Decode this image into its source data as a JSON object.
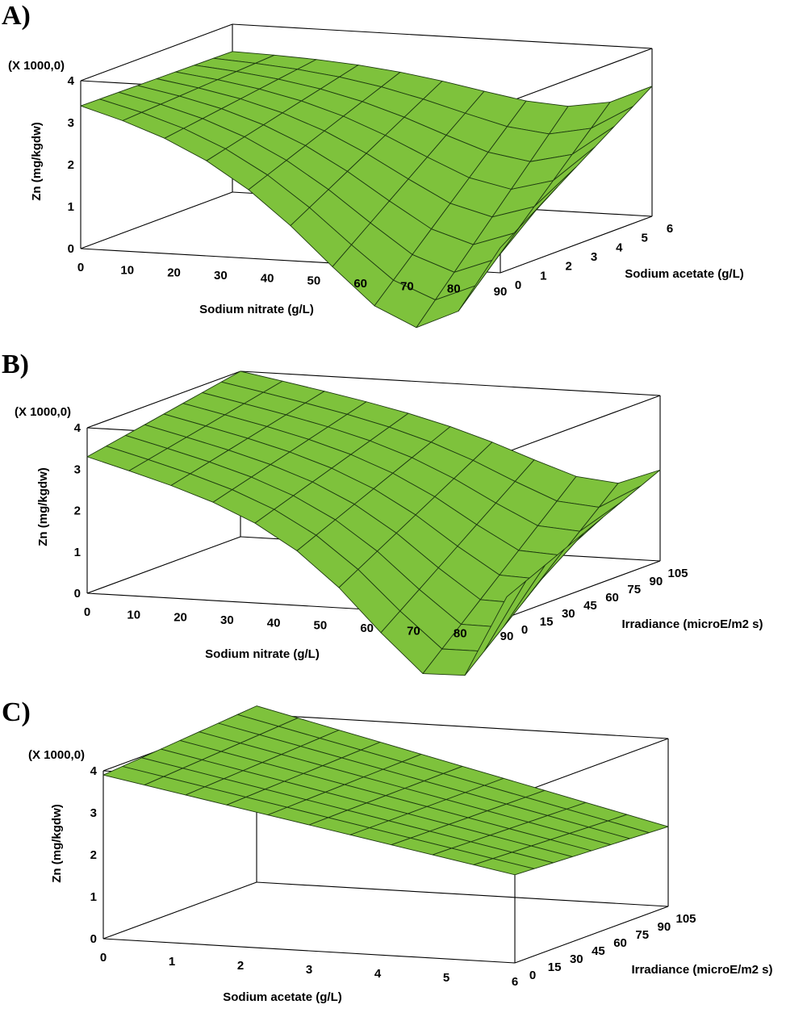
{
  "chart_data": [
    {
      "panel": "A)",
      "type": "surface3d",
      "zlabel": "Zn (mg/kgdw)",
      "z_multiplier": "(X 1000,0)",
      "x": {
        "label": "Sodium nitrate (g/L)",
        "range": [
          0,
          90
        ],
        "ticks": [
          "0",
          "10",
          "20",
          "30",
          "40",
          "50",
          "60",
          "70",
          "80",
          "90"
        ]
      },
      "y": {
        "label": "Sodium acetate (g/L)",
        "range": [
          0,
          6
        ],
        "ticks": [
          "0",
          "1",
          "2",
          "3",
          "4",
          "5",
          "6"
        ]
      },
      "z": {
        "range": [
          0,
          4
        ],
        "ticks": [
          "0",
          "1",
          "2",
          "3",
          "4"
        ]
      },
      "surface": {
        "z_at_corners": {
          "x0_y0": 3.4,
          "x0_ymax": 3.35,
          "xmax_y0": 0.6,
          "xmax_ymax": 3.1
        },
        "min_approx": {
          "x": 70,
          "y": 0,
          "z": 0.0
        }
      },
      "color": "#7ec23c"
    },
    {
      "panel": "B)",
      "type": "surface3d",
      "zlabel": "Zn (mg/kgdw)",
      "z_multiplier": "(X 1000,0)",
      "x": {
        "label": "Sodium nitrate (g/L)",
        "range": [
          0,
          90
        ],
        "ticks": [
          "0",
          "10",
          "20",
          "30",
          "40",
          "50",
          "60",
          "70",
          "80",
          "90"
        ]
      },
      "y": {
        "label": "Irradiance (microE/m2 s)",
        "range": [
          0,
          105
        ],
        "ticks": [
          "0",
          "15",
          "30",
          "45",
          "60",
          "75",
          "90",
          "105"
        ]
      },
      "z": {
        "range": [
          0,
          4
        ],
        "ticks": [
          "0",
          "1",
          "2",
          "3",
          "4"
        ]
      },
      "surface": {
        "z_at_corners": {
          "x0_y0": 3.3,
          "x0_ymax": 4.0,
          "xmax_y0": 0.5,
          "xmax_ymax": 2.2
        },
        "min_approx": {
          "x": 75,
          "y": 0,
          "z": 0.0
        }
      },
      "color": "#7ec23c"
    },
    {
      "panel": "C)",
      "type": "surface3d",
      "zlabel": "Zn (mg/kgdw)",
      "z_multiplier": "(X 1000,0)",
      "x": {
        "label": "Sodium acetate (g/L)",
        "range": [
          0,
          6
        ],
        "ticks": [
          "0",
          "1",
          "2",
          "3",
          "4",
          "5",
          "6"
        ]
      },
      "y": {
        "label": "Irradiance (microE/m2 s)",
        "range": [
          0,
          105
        ],
        "ticks": [
          "0",
          "15",
          "30",
          "45",
          "60",
          "75",
          "90",
          "105"
        ]
      },
      "z": {
        "range": [
          0,
          4
        ],
        "ticks": [
          "0",
          "1",
          "2",
          "3",
          "4"
        ]
      },
      "surface": {
        "z_at_corners": {
          "x0_y0": 3.9,
          "x0_ymax": 4.2,
          "xmax_y0": 2.1,
          "xmax_ymax": 1.9
        },
        "shape": "near-planar"
      },
      "color": "#7ec23c"
    }
  ]
}
